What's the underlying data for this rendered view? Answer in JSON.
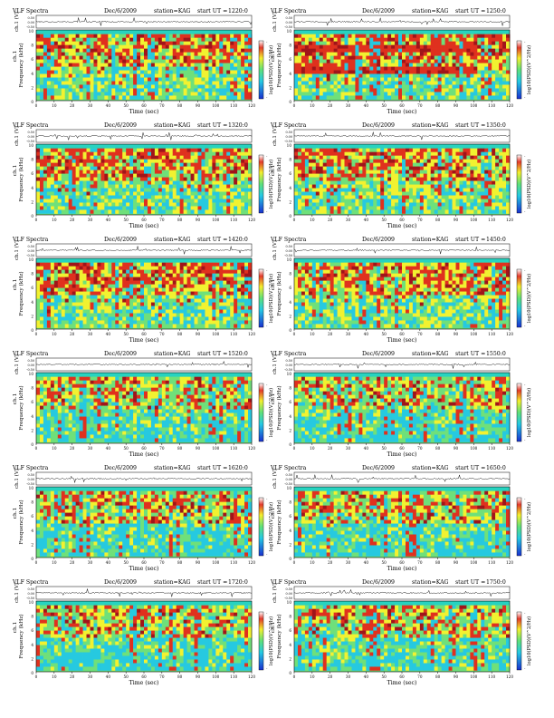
{
  "page": {
    "common": {
      "header_left": "VLF Spectra",
      "date": "Dec/6/2009",
      "station": "station=KAG",
      "start_label": "start UT =",
      "wave_ylabel": "ch.1 (V)",
      "wave_ticks": [
        "0.50",
        "0.00",
        "-0.50"
      ],
      "freq_ylabel": "Frequency (kHz)",
      "freq_ylabel_secondary": "ch.1",
      "freq_ticks": [
        "10",
        "8",
        "6",
        "4",
        "2",
        "0"
      ],
      "time_ticks": [
        "0",
        "10",
        "20",
        "30",
        "40",
        "50",
        "60",
        "70",
        "80",
        "90",
        "100",
        "110",
        "120"
      ],
      "time_label": "Time (sec)",
      "colorbar_label": "log10(PSD)(V^2/Hz)",
      "colorbar_top": "-",
      "colorbar_bottom": "-"
    },
    "colors": {
      "background": "#27d3c0",
      "low": "#26c9e0",
      "mid": "#6fe07a",
      "yellow": "#f2f230",
      "red": "#e0301e",
      "dark_red": "#a0141a",
      "blue": "#1c3fd8"
    }
  },
  "panels": [
    {
      "start_ut": "1220:0"
    },
    {
      "start_ut": "1250:0"
    },
    {
      "start_ut": "1320:0"
    },
    {
      "start_ut": "1350:0"
    },
    {
      "start_ut": "1420:0"
    },
    {
      "start_ut": "1450:0"
    },
    {
      "start_ut": "1520:0"
    },
    {
      "start_ut": "1550:0"
    },
    {
      "start_ut": "1620:0"
    },
    {
      "start_ut": "1650:0"
    },
    {
      "start_ut": "1720:0"
    },
    {
      "start_ut": "1750:0"
    }
  ],
  "chart_data": [
    {
      "type": "heatmap",
      "title": "VLF Spectra Dec/6/2009 station=KAG start UT =1220:0",
      "xlabel": "Time (sec)",
      "ylabel": "Frequency (kHz)",
      "xlim": [
        0,
        120
      ],
      "ylim": [
        0,
        10
      ],
      "colorbar": "log10(PSD)(V^2/Hz)",
      "waveform": {
        "ylabel": "ch.1 (V)",
        "ylim": [
          -0.5,
          0.5
        ]
      }
    },
    {
      "type": "heatmap",
      "title": "VLF Spectra Dec/6/2009 station=KAG start UT =1250:0",
      "xlabel": "Time (sec)",
      "ylabel": "Frequency (kHz)",
      "xlim": [
        0,
        120
      ],
      "ylim": [
        0,
        10
      ],
      "colorbar": "log10(PSD)(V^2/Hz)",
      "waveform": {
        "ylabel": "ch.1 (V)",
        "ylim": [
          -0.5,
          0.5
        ]
      }
    },
    {
      "type": "heatmap",
      "title": "VLF Spectra Dec/6/2009 station=KAG start UT =1320:0",
      "xlabel": "Time (sec)",
      "ylabel": "Frequency (kHz)",
      "xlim": [
        0,
        120
      ],
      "ylim": [
        0,
        10
      ],
      "colorbar": "log10(PSD)(V^2/Hz)",
      "waveform": {
        "ylabel": "ch.1 (V)",
        "ylim": [
          -0.5,
          0.5
        ]
      }
    },
    {
      "type": "heatmap",
      "title": "VLF Spectra Dec/6/2009 station=KAG start UT =1350:0",
      "xlabel": "Time (sec)",
      "ylabel": "Frequency (kHz)",
      "xlim": [
        0,
        120
      ],
      "ylim": [
        0,
        10
      ],
      "colorbar": "log10(PSD)(V^2/Hz)",
      "waveform": {
        "ylabel": "ch.1 (V)",
        "ylim": [
          -0.5,
          0.5
        ]
      }
    },
    {
      "type": "heatmap",
      "title": "VLF Spectra Dec/6/2009 station=KAG start UT =1420:0",
      "xlabel": "Time (sec)",
      "ylabel": "Frequency (kHz)",
      "xlim": [
        0,
        120
      ],
      "ylim": [
        0,
        10
      ],
      "colorbar": "log10(PSD)(V^2/Hz)",
      "waveform": {
        "ylabel": "ch.1 (V)",
        "ylim": [
          -0.5,
          0.5
        ]
      }
    },
    {
      "type": "heatmap",
      "title": "VLF Spectra Dec/6/2009 station=KAG start UT =1450:0",
      "xlabel": "Time (sec)",
      "ylabel": "Frequency (kHz)",
      "xlim": [
        0,
        120
      ],
      "ylim": [
        0,
        10
      ],
      "colorbar": "log10(PSD)(V^2/Hz)",
      "waveform": {
        "ylabel": "ch.1 (V)",
        "ylim": [
          -0.5,
          0.5
        ]
      }
    },
    {
      "type": "heatmap",
      "title": "VLF Spectra Dec/6/2009 station=KAG start UT =1520:0",
      "xlabel": "Time (sec)",
      "ylabel": "Frequency (kHz)",
      "xlim": [
        0,
        120
      ],
      "ylim": [
        0,
        10
      ],
      "colorbar": "log10(PSD)(V^2/Hz)",
      "waveform": {
        "ylabel": "ch.1 (V)",
        "ylim": [
          -0.5,
          0.5
        ]
      }
    },
    {
      "type": "heatmap",
      "title": "VLF Spectra Dec/6/2009 station=KAG start UT =1550:0",
      "xlabel": "Time (sec)",
      "ylabel": "Frequency (kHz)",
      "xlim": [
        0,
        120
      ],
      "ylim": [
        0,
        10
      ],
      "colorbar": "log10(PSD)(V^2/Hz)",
      "waveform": {
        "ylabel": "ch.1 (V)",
        "ylim": [
          -0.5,
          0.5
        ]
      }
    },
    {
      "type": "heatmap",
      "title": "VLF Spectra Dec/6/2009 station=KAG start UT =1620:0",
      "xlabel": "Time (sec)",
      "ylabel": "Frequency (kHz)",
      "xlim": [
        0,
        120
      ],
      "ylim": [
        0,
        10
      ],
      "colorbar": "log10(PSD)(V^2/Hz)",
      "waveform": {
        "ylabel": "ch.1 (V)",
        "ylim": [
          -0.5,
          0.5
        ]
      }
    },
    {
      "type": "heatmap",
      "title": "VLF Spectra Dec/6/2009 station=KAG start UT =1650:0",
      "xlabel": "Time (sec)",
      "ylabel": "Frequency (kHz)",
      "xlim": [
        0,
        120
      ],
      "ylim": [
        0,
        10
      ],
      "colorbar": "log10(PSD)(V^2/Hz)",
      "waveform": {
        "ylabel": "ch.1 (V)",
        "ylim": [
          -0.5,
          0.5
        ]
      }
    },
    {
      "type": "heatmap",
      "title": "VLF Spectra Dec/6/2009 station=KAG start UT =1720:0",
      "xlabel": "Time (sec)",
      "ylabel": "Frequency (kHz)",
      "xlim": [
        0,
        120
      ],
      "ylim": [
        0,
        10
      ],
      "colorbar": "log10(PSD)(V^2/Hz)",
      "waveform": {
        "ylabel": "ch.1 (V)",
        "ylim": [
          -0.5,
          0.5
        ]
      }
    },
    {
      "type": "heatmap",
      "title": "VLF Spectra Dec/6/2009 station=KAG start UT =1750:0",
      "xlabel": "Time (sec)",
      "ylabel": "Frequency (kHz)",
      "xlim": [
        0,
        120
      ],
      "ylim": [
        0,
        10
      ],
      "colorbar": "log10(PSD)(V^2/Hz)",
      "waveform": {
        "ylabel": "ch.1 (V)",
        "ylim": [
          -0.5,
          0.5
        ]
      }
    }
  ]
}
